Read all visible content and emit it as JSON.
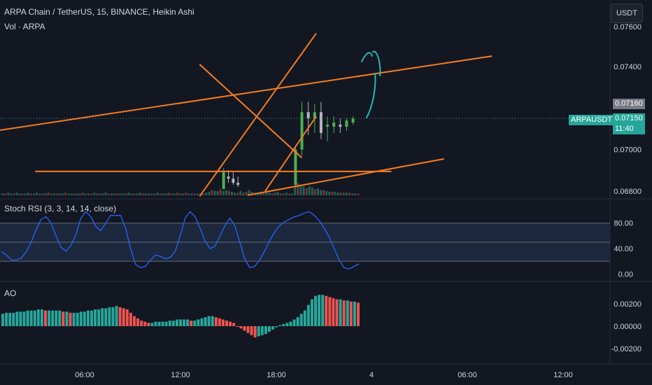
{
  "header": {
    "symbol_line": "ARPA Chain / TetherUS, 15, BINANCE, Heikin Ashi",
    "volume_legend": "Vol · ARPA",
    "currency_button": "USDT"
  },
  "price_axis": {
    "ticks": [
      "0.07400",
      "0.07000",
      "0.06800"
    ],
    "top_partial_tick": "0.07600"
  },
  "price_tags": {
    "last_high": "0.07160",
    "symbol": "ARPAUSDT",
    "last_price": "0.07150",
    "countdown": "11:40"
  },
  "stoch_rsi": {
    "legend": "Stoch RSI (3, 3, 14, 14, close)",
    "ticks": [
      "80.00",
      "40.00",
      "0.00"
    ]
  },
  "ao": {
    "legend": "AO",
    "ticks": [
      "0.00200",
      "0.00000",
      "-0.00200"
    ]
  },
  "time_axis": {
    "labels": [
      "06:00",
      "12:00",
      "18:00",
      "4",
      "06:00",
      "12:00"
    ]
  },
  "colors": {
    "background": "#131722",
    "up": "#26a69a",
    "down": "#ef5350",
    "candle_up": "#4caf50",
    "trendline": "#f57c20",
    "stoch_line": "#2962ff",
    "stoch_band": "#1e2a40",
    "drawing": "#1fbcb4",
    "tag_green": "#26a69a",
    "tag_gray": "#787b86"
  },
  "chart_data": [
    {
      "type": "candlestick",
      "title": "ARPA Chain / TetherUS, 15, BINANCE, Heikin Ashi",
      "ylim": [
        0.0678,
        0.0762
      ],
      "candles": [
        {
          "t": 14.7,
          "o": 0.0681,
          "h": 0.0691,
          "l": 0.0681,
          "c": 0.0689
        },
        {
          "t": 15.0,
          "o": 0.0687,
          "h": 0.069,
          "l": 0.0684,
          "c": 0.0686
        },
        {
          "t": 15.3,
          "o": 0.0686,
          "h": 0.0689,
          "l": 0.0683,
          "c": 0.0684
        },
        {
          "t": 15.6,
          "o": 0.0684,
          "h": 0.0687,
          "l": 0.0682,
          "c": 0.0683
        },
        {
          "t": 19.2,
          "o": 0.0683,
          "h": 0.0702,
          "l": 0.0682,
          "c": 0.07
        },
        {
          "t": 19.6,
          "o": 0.07,
          "h": 0.0723,
          "l": 0.0697,
          "c": 0.0718
        },
        {
          "t": 20.0,
          "o": 0.0718,
          "h": 0.0723,
          "l": 0.0707,
          "c": 0.0715
        },
        {
          "t": 20.4,
          "o": 0.0715,
          "h": 0.0722,
          "l": 0.0708,
          "c": 0.0718
        },
        {
          "t": 20.8,
          "o": 0.0718,
          "h": 0.0723,
          "l": 0.0705,
          "c": 0.0708
        },
        {
          "t": 21.2,
          "o": 0.0711,
          "h": 0.0716,
          "l": 0.0704,
          "c": 0.0712
        },
        {
          "t": 21.6,
          "o": 0.0711,
          "h": 0.0716,
          "l": 0.0708,
          "c": 0.0713
        },
        {
          "t": 22.0,
          "o": 0.0712,
          "h": 0.0715,
          "l": 0.0708,
          "c": 0.0711
        },
        {
          "t": 22.4,
          "o": 0.0711,
          "h": 0.0715,
          "l": 0.0709,
          "c": 0.0714
        },
        {
          "t": 22.8,
          "o": 0.0713,
          "h": 0.0716,
          "l": 0.0712,
          "c": 0.0715
        }
      ],
      "last_price": 0.0715,
      "trendlines": [
        {
          "x1": 0.0,
          "y1": 0.07085,
          "x2": 31.5,
          "y2": 0.0745
        },
        {
          "x1": 13.2,
          "y1": 0.06775,
          "x2": 20.5,
          "y2": 0.0756
        },
        {
          "x1": 13.2,
          "y1": 0.0741,
          "x2": 19.6,
          "y2": 0.0696
        },
        {
          "x1": 2.9,
          "y1": 0.06895,
          "x2": 25.2,
          "y2": 0.06895
        },
        {
          "x1": 16.2,
          "y1": 0.0678,
          "x2": 28.5,
          "y2": 0.06955
        },
        {
          "x1": 17.3,
          "y1": 0.068,
          "x2": 20.5,
          "y2": 0.0716
        }
      ]
    },
    {
      "type": "bar",
      "title": "Vol · ARPA",
      "note": "volume histogram (relative units)",
      "values": [
        2,
        2,
        3,
        2,
        2,
        3,
        2,
        2,
        2,
        3,
        2,
        2,
        3,
        2,
        2,
        2,
        3,
        2,
        2,
        2,
        2,
        2,
        3,
        2,
        2,
        2,
        2,
        2,
        3,
        2,
        2,
        2,
        3,
        2,
        2,
        2,
        3,
        2,
        2,
        2,
        2,
        2,
        2,
        2,
        3,
        2,
        2,
        2,
        3,
        2,
        2,
        2,
        2,
        2,
        3,
        2,
        2,
        2,
        3,
        2,
        2,
        3,
        2,
        2,
        3,
        2,
        2,
        2,
        2,
        2,
        2,
        3,
        4,
        6,
        5,
        5,
        7,
        5,
        6,
        5,
        4,
        3,
        3,
        5,
        3,
        4,
        6,
        4,
        3,
        3,
        4,
        3,
        4,
        3,
        2,
        3,
        4,
        2,
        2,
        3,
        2,
        2,
        10,
        14,
        12,
        10,
        8,
        10,
        9,
        7,
        8,
        6,
        6,
        5,
        4,
        4,
        4,
        3,
        3,
        3,
        3,
        3,
        2,
        2,
        2
      ]
    },
    {
      "type": "line",
      "title": "Stoch RSI (3, 3, 14, 14, close)",
      "ylim": [
        -5,
        105
      ],
      "bands": [
        80,
        50,
        20
      ],
      "series": [
        {
          "values": [
            35,
            30,
            22,
            22,
            25,
            35,
            50,
            70,
            86,
            90,
            80,
            60,
            42,
            36,
            45,
            62,
            88,
            98,
            90,
            75,
            68,
            80,
            92,
            92,
            92,
            72,
            40,
            15,
            10,
            12,
            22,
            30,
            28,
            24,
            26,
            36,
            60,
            88,
            98,
            90,
            72,
            52,
            40,
            44,
            60,
            76,
            88,
            76,
            50,
            24,
            10,
            12,
            22,
            36,
            52,
            66,
            76,
            82,
            86,
            90,
            92,
            96,
            98,
            92,
            84,
            72,
            58,
            40,
            22,
            10,
            8,
            12,
            16
          ]
        }
      ]
    },
    {
      "type": "bar",
      "title": "AO",
      "ylim": [
        -0.0026,
        0.0028
      ],
      "values": [
        0.0011,
        0.0012,
        0.0012,
        0.0012,
        0.0013,
        0.0013,
        0.0013,
        0.0014,
        0.0014,
        0.0014,
        0.0015,
        0.0015,
        0.0014,
        0.0014,
        0.0014,
        0.0014,
        0.0014,
        0.0013,
        0.0013,
        0.0012,
        0.0012,
        0.0012,
        0.0013,
        0.0013,
        0.0014,
        0.0014,
        0.0015,
        0.0015,
        0.0016,
        0.0016,
        0.0017,
        0.0017,
        0.0018,
        0.0017,
        0.0016,
        0.0015,
        0.0012,
        0.0009,
        0.0007,
        0.0005,
        0.0004,
        0.0003,
        0.0003,
        0.0004,
        0.0004,
        0.0004,
        0.0004,
        0.0005,
        0.0005,
        0.0006,
        0.0006,
        0.0006,
        0.0006,
        0.0005,
        0.0005,
        0.0006,
        0.0007,
        0.0008,
        0.0009,
        0.0009,
        0.0008,
        0.0007,
        0.0006,
        0.0005,
        0.0004,
        0.0003,
        0.0,
        -0.0002,
        -0.0004,
        -0.0006,
        -0.0008,
        -0.001,
        -0.0009,
        -0.0008,
        -0.0007,
        -0.0005,
        -0.0003,
        -0.0001,
        0.0001,
        0.0002,
        0.0003,
        0.0004,
        0.0006,
        0.0008,
        0.0011,
        0.0014,
        0.0019,
        0.0024,
        0.0027,
        0.0028,
        0.0028,
        0.0027,
        0.0026,
        0.0025,
        0.0024,
        0.0024,
        0.0023,
        0.0023,
        0.0022,
        0.0022,
        0.0021
      ]
    }
  ]
}
